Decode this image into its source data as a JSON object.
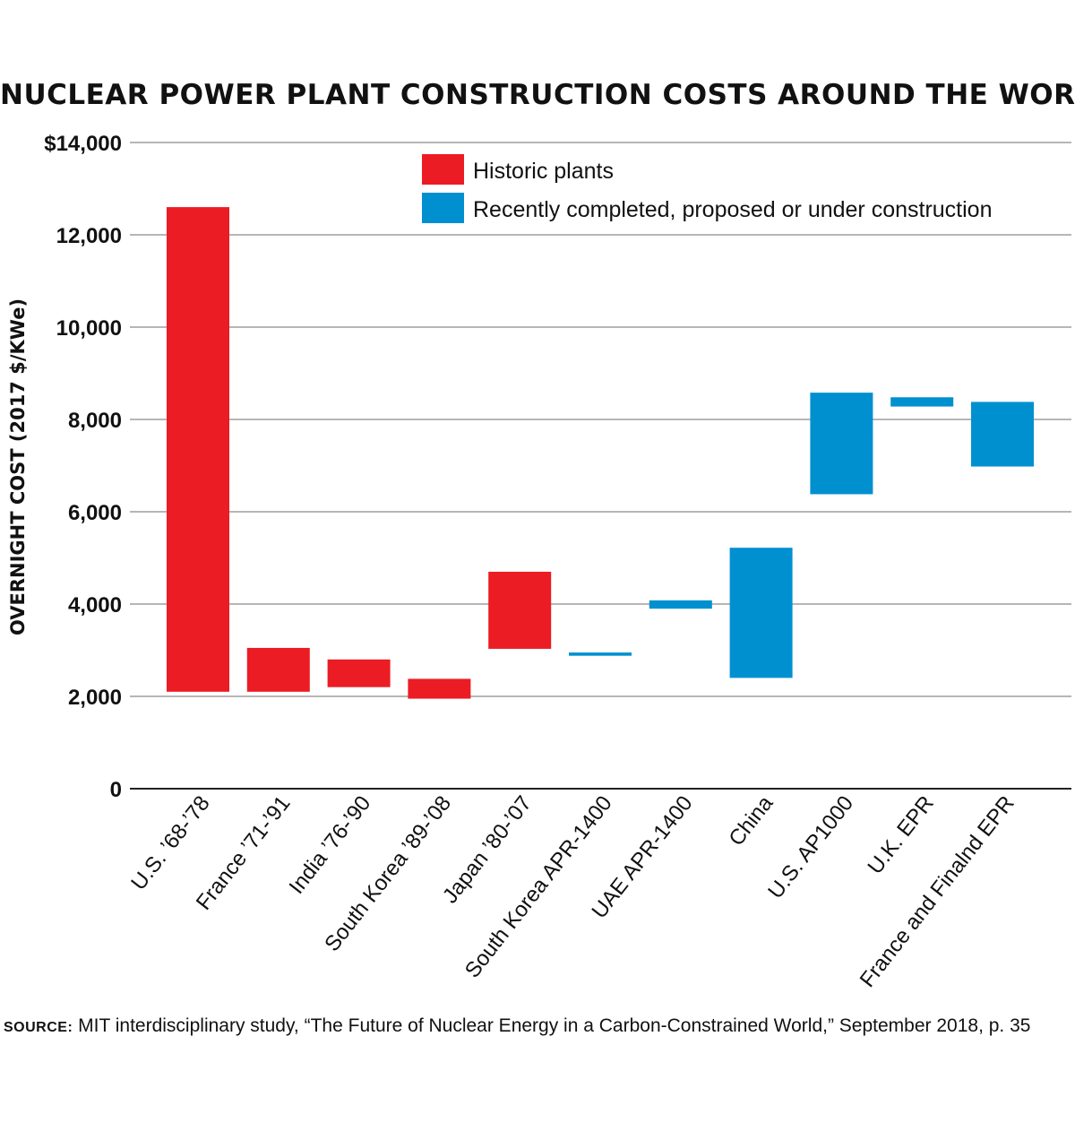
{
  "chart_data": {
    "type": "bar",
    "title": "NUCLEAR POWER PLANT CONSTRUCTION COSTS AROUND THE WORLD",
    "ylabel": "OVERNIGHT COST (2017 $/KWe)",
    "xlabel": "",
    "ylim": [
      0,
      14000
    ],
    "yticks": [
      {
        "value": 0,
        "label": "0"
      },
      {
        "value": 2000,
        "label": "2,000"
      },
      {
        "value": 4000,
        "label": "4,000"
      },
      {
        "value": 6000,
        "label": "6,000"
      },
      {
        "value": 8000,
        "label": "8,000"
      },
      {
        "value": 10000,
        "label": "10,000"
      },
      {
        "value": 12000,
        "label": "12,000"
      },
      {
        "value": 14000,
        "label": "$14,000"
      }
    ],
    "grid": true,
    "legend_position": "top-right",
    "series": [
      {
        "name": "Historic plants",
        "color": "#ec1c24"
      },
      {
        "name": "Recently completed, proposed or under construction",
        "color": "#0090d0"
      }
    ],
    "categories": [
      "U.S. ’68-’78",
      "France ’71-’91",
      "India ’76-’90",
      "South Korea ’89-’08",
      "Japan ’80-’07",
      "South Korea APR-1400",
      "UAE APR-1400",
      "China",
      "U.S. AP1000",
      "U.K. EPR",
      "France and Finalnd EPR"
    ],
    "ranges": [
      {
        "low": 2100,
        "high": 12600,
        "series": 0
      },
      {
        "low": 2100,
        "high": 3050,
        "series": 0
      },
      {
        "low": 2200,
        "high": 2800,
        "series": 0
      },
      {
        "low": 1950,
        "high": 2380,
        "series": 0
      },
      {
        "low": 3030,
        "high": 4700,
        "series": 0
      },
      {
        "low": 2880,
        "high": 2950,
        "series": 1
      },
      {
        "low": 3900,
        "high": 4080,
        "series": 1
      },
      {
        "low": 2400,
        "high": 5220,
        "series": 1
      },
      {
        "low": 6380,
        "high": 8580,
        "series": 1
      },
      {
        "low": 8280,
        "high": 8480,
        "series": 1
      },
      {
        "low": 6980,
        "high": 8380,
        "series": 1
      }
    ]
  },
  "source": {
    "label": "source:",
    "text": "MIT interdisciplinary study, “The Future of Nuclear Energy in a Carbon-Constrained World,” September 2018, p. 35"
  }
}
